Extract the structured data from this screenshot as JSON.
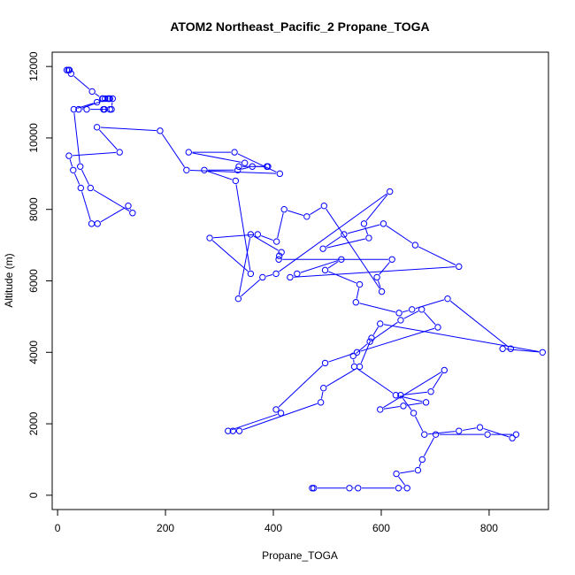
{
  "chart_data": {
    "type": "line",
    "title": "ATOM2 Northeast_Pacific_2 Propane_TOGA",
    "xlabel": "Propane_TOGA",
    "ylabel": "Altitude (m)",
    "xlim": [
      -10,
      910
    ],
    "ylim": [
      -400,
      12400
    ],
    "x_ticks": [
      0,
      200,
      400,
      600,
      800
    ],
    "y_ticks": [
      0,
      2000,
      4000,
      6000,
      8000,
      10000,
      12000
    ],
    "x_tick_labels": [
      "0",
      "200",
      "400",
      "600",
      "800"
    ],
    "y_tick_labels": [
      "0",
      "2000",
      "4000",
      "6000",
      "8000",
      "10000",
      "12000"
    ],
    "series_color": "#0000ff",
    "marker": "open-circle",
    "series": [
      {
        "name": "Propane_TOGA",
        "x": [
          472,
          475,
          541,
          557,
          632,
          648,
          628,
          668,
          676,
          701,
          797,
          850,
          843,
          783,
          744,
          680,
          660,
          636,
          692,
          717,
          598,
          641,
          683,
          627,
          550,
          548,
          579,
          636,
          675,
          705,
          555,
          496,
          405,
          414,
          316,
          325,
          337,
          488,
          493,
          560,
          582,
          598,
          899,
          825,
          840,
          723,
          657,
          633,
          553,
          560,
          496,
          526,
          444,
          431,
          744,
          663,
          604,
          531,
          492,
          577,
          568,
          616,
          405,
          380,
          335,
          358,
          415,
          411,
          410,
          620,
          592,
          601,
          494,
          462,
          420,
          406,
          371,
          282,
          358,
          330,
          272,
          334,
          361,
          388,
          390,
          336,
          347,
          243,
          328,
          412,
          239,
          190,
          73,
          115,
          21,
          29,
          43,
          63,
          74,
          131,
          139,
          61,
          42,
          30,
          73,
          84,
          93,
          102,
          100,
          85,
          87,
          97,
          54,
          39,
          95,
          97,
          88,
          83,
          64,
          25,
          20,
          17,
          22
        ],
        "y": [
          200,
          200,
          200,
          200,
          200,
          200,
          600,
          700,
          1000,
          1700,
          1700,
          1700,
          1600,
          1900,
          1800,
          1700,
          2300,
          2800,
          2900,
          3500,
          2400,
          2500,
          2600,
          2800,
          3600,
          3900,
          4300,
          4900,
          5200,
          4700,
          4000,
          3700,
          2400,
          2300,
          1800,
          1800,
          1800,
          2600,
          3000,
          3600,
          4400,
          4800,
          4000,
          4100,
          4100,
          5500,
          5200,
          5100,
          5400,
          5900,
          6300,
          6600,
          6200,
          6100,
          6400,
          7000,
          7600,
          7300,
          6900,
          7200,
          7600,
          8500,
          6200,
          6100,
          5500,
          7300,
          6800,
          6700,
          6600,
          6600,
          6100,
          5700,
          8100,
          7800,
          8000,
          7100,
          7300,
          7200,
          6200,
          8800,
          9100,
          9100,
          9200,
          9200,
          9200,
          9200,
          9300,
          9600,
          9600,
          9000,
          9100,
          10200,
          10300,
          9600,
          9500,
          9100,
          8600,
          7600,
          7600,
          8100,
          7900,
          8600,
          9200,
          10800,
          11000,
          11100,
          11100,
          11100,
          10800,
          10800,
          10800,
          10800,
          10800,
          10800,
          11100,
          11100,
          11100,
          11100,
          11300,
          11800,
          11900,
          11900,
          11900
        ]
      }
    ]
  }
}
